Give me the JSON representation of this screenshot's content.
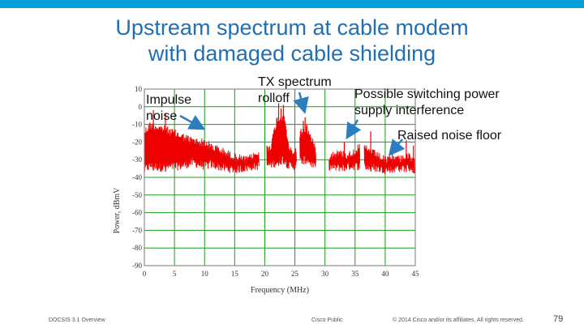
{
  "slide": {
    "title_line1": "Upstream spectrum at cable modem",
    "title_line2": "with damaged cable shielding",
    "brand_color": "#049fd9",
    "title_color": "#1f6fb5"
  },
  "annotations": {
    "impulse_line1": "Impulse",
    "impulse_line2": "noise",
    "tx_line1": "TX spectrum",
    "tx_line2": "rolloff",
    "switching_line1": "Possible switching power",
    "switching_line2": "supply interference",
    "raised": "Raised noise floor",
    "arrow_color": "#2b7fc0"
  },
  "footer": {
    "left": "DOCSIS 3.1 Overview",
    "center": "Cisco Public",
    "right": "© 2014 Cisco and/or its affiliates. All rights reserved.",
    "page": "79"
  },
  "chart_data": {
    "type": "line",
    "xlabel": "Frequency (MHz)",
    "ylabel": "Power, dBmV",
    "xlim": [
      0,
      45
    ],
    "ylim": [
      -90,
      10
    ],
    "xticks": [
      0,
      5,
      10,
      15,
      20,
      25,
      30,
      35,
      40,
      45
    ],
    "yticks": [
      10,
      0,
      -10,
      -20,
      -30,
      -40,
      -50,
      -60,
      -70,
      -80,
      -90
    ],
    "grid": true,
    "series_color": "#ee0000",
    "grid_color": "#1a9c1a",
    "envelope": [
      {
        "x": 0.0,
        "lo": -38,
        "hi": -12
      },
      {
        "x": 1.0,
        "lo": -36,
        "hi": -8
      },
      {
        "x": 3.0,
        "lo": -37,
        "hi": -10
      },
      {
        "x": 6.0,
        "lo": -36,
        "hi": -14
      },
      {
        "x": 8.0,
        "lo": -34,
        "hi": -17
      },
      {
        "x": 10.0,
        "lo": -36,
        "hi": -18
      },
      {
        "x": 11.0,
        "lo": -35,
        "hi": -20
      },
      {
        "x": 13.0,
        "lo": -37,
        "hi": -23
      },
      {
        "x": 15.0,
        "lo": -38,
        "hi": -26
      },
      {
        "x": 17.0,
        "lo": -37,
        "hi": -28
      },
      {
        "x": 18.0,
        "lo": -36,
        "hi": -26
      },
      {
        "x": 20.0,
        "lo": -36,
        "hi": -22
      },
      {
        "x": 21.0,
        "lo": -35,
        "hi": -20
      },
      {
        "x": 22.0,
        "lo": -34,
        "hi": -5
      },
      {
        "x": 23.0,
        "lo": -32,
        "hi": -3
      },
      {
        "x": 23.5,
        "lo": -34,
        "hi": -8
      },
      {
        "x": 24.0,
        "lo": -36,
        "hi": -22
      },
      {
        "x": 25.0,
        "lo": -36,
        "hi": -24
      },
      {
        "x": 26.0,
        "lo": -33,
        "hi": -12
      },
      {
        "x": 27.0,
        "lo": -32,
        "hi": -10
      },
      {
        "x": 28.0,
        "lo": -36,
        "hi": -18
      },
      {
        "x": 29.0,
        "lo": -37,
        "hi": -25
      },
      {
        "x": 30.0,
        "lo": -36,
        "hi": -26
      },
      {
        "x": 32.0,
        "lo": -37,
        "hi": -24
      },
      {
        "x": 34.0,
        "lo": -36,
        "hi": -25
      },
      {
        "x": 36.0,
        "lo": -36,
        "hi": -20
      },
      {
        "x": 38.0,
        "lo": -37,
        "hi": -24
      },
      {
        "x": 40.0,
        "lo": -38,
        "hi": -28
      },
      {
        "x": 42.0,
        "lo": -37,
        "hi": -27
      },
      {
        "x": 44.0,
        "lo": -37,
        "hi": -26
      },
      {
        "x": 45.0,
        "lo": -38,
        "hi": -30
      }
    ],
    "gaps": [
      [
        19.0,
        20.3
      ],
      [
        25.2,
        25.8
      ],
      [
        28.5,
        30.6
      ],
      [
        35.8,
        36.5
      ]
    ],
    "spikes": [
      {
        "x": 1.5,
        "y": -2
      },
      {
        "x": 3.5,
        "y": -4
      },
      {
        "x": 22.3,
        "y": 2
      },
      {
        "x": 22.7,
        "y": -1
      },
      {
        "x": 23.1,
        "y": 1
      },
      {
        "x": 26.4,
        "y": -8
      },
      {
        "x": 26.7,
        "y": -6
      },
      {
        "x": 26.95,
        "y": -10
      },
      {
        "x": 33.2,
        "y": -20
      },
      {
        "x": 37.6,
        "y": -14
      },
      {
        "x": 41.2,
        "y": -20
      },
      {
        "x": 43.5,
        "y": -19
      },
      {
        "x": 44.7,
        "y": -22
      }
    ]
  }
}
